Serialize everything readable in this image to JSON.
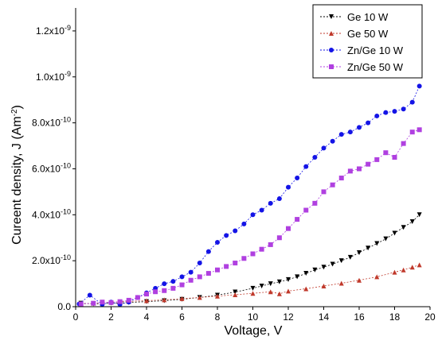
{
  "chart_data": {
    "type": "scatter",
    "xlabel": "Voltage, V",
    "ylabel": "Cureent density, J (Am",
    "ylabel_sup": "-2",
    "ylabel_tail": ")",
    "xlim": [
      0,
      20
    ],
    "ylim": [
      0,
      1.3e-09
    ],
    "grid": false,
    "legend_position": "top-right",
    "x_ticks": [
      {
        "value": 0,
        "label": "0"
      },
      {
        "value": 2,
        "label": "2"
      },
      {
        "value": 4,
        "label": "4"
      },
      {
        "value": 6,
        "label": "6"
      },
      {
        "value": 8,
        "label": "8"
      },
      {
        "value": 10,
        "label": "10"
      },
      {
        "value": 12,
        "label": "12"
      },
      {
        "value": 14,
        "label": "14"
      },
      {
        "value": 16,
        "label": "16"
      },
      {
        "value": 18,
        "label": "18"
      },
      {
        "value": 20,
        "label": "20"
      }
    ],
    "y_ticks": [
      {
        "value": 0,
        "label": "0.0",
        "sup": ""
      },
      {
        "value": 2e-10,
        "label": "2.0x10",
        "sup": "-10"
      },
      {
        "value": 4e-10,
        "label": "4.0x10",
        "sup": "-10"
      },
      {
        "value": 6e-10,
        "label": "6.0x10",
        "sup": "-10"
      },
      {
        "value": 8e-10,
        "label": "8.0x10",
        "sup": "-10"
      },
      {
        "value": 1e-09,
        "label": "1.0x10",
        "sup": "-9"
      },
      {
        "value": 1.2e-09,
        "label": "1.2x10",
        "sup": "-9"
      }
    ],
    "series": [
      {
        "name": "Ge 10 W",
        "color": "#000000",
        "marker": "triangle-down",
        "x": [
          0.3,
          1,
          2,
          3,
          4,
          5,
          6,
          7,
          8,
          9,
          10,
          10.5,
          11,
          11.5,
          12,
          12.5,
          13,
          13.5,
          14,
          14.5,
          15,
          15.5,
          16,
          16.5,
          17,
          17.5,
          18,
          18.5,
          19,
          19.4
        ],
        "y": [
          1.5e-11,
          1.2e-11,
          1.5e-11,
          1.8e-11,
          2.2e-11,
          2.6e-11,
          3.2e-11,
          4e-11,
          5e-11,
          6.4e-11,
          8e-11,
          9e-11,
          1e-10,
          1.08e-10,
          1.18e-10,
          1.3e-10,
          1.45e-10,
          1.6e-10,
          1.72e-10,
          1.85e-10,
          2e-10,
          2.15e-10,
          2.35e-10,
          2.55e-10,
          2.75e-10,
          2.95e-10,
          3.2e-10,
          3.45e-10,
          3.7e-10,
          4e-10
        ]
      },
      {
        "name": "Ge 50 W",
        "color": "#c0392b",
        "marker": "triangle-up",
        "x": [
          0.3,
          1,
          2,
          3,
          4,
          5,
          6,
          7,
          8,
          9,
          10,
          11,
          11.5,
          12,
          13,
          14,
          15,
          16,
          17,
          18,
          18.5,
          19,
          19.4
        ],
        "y": [
          1.2e-11,
          1.5e-11,
          2e-11,
          2.3e-11,
          2.6e-11,
          3e-11,
          3.5e-11,
          4e-11,
          4.6e-11,
          5.2e-11,
          5.8e-11,
          6.5e-11,
          5.6e-11,
          6.8e-11,
          7.8e-11,
          9e-11,
          1.02e-10,
          1.15e-10,
          1.3e-10,
          1.5e-10,
          1.6e-10,
          1.72e-10,
          1.82e-10
        ]
      },
      {
        "name": "Zn/Ge 10 W",
        "color": "#1414e6",
        "marker": "circle",
        "x": [
          0.2,
          0.8,
          1.5,
          2,
          2.5,
          3,
          3.5,
          4,
          4.5,
          5,
          5.5,
          6,
          6.5,
          7,
          7.5,
          8,
          8.5,
          9,
          9.5,
          10,
          10.5,
          11,
          11.5,
          12,
          12.5,
          13,
          13.5,
          14,
          14.5,
          15,
          15.5,
          16,
          16.5,
          17,
          17.5,
          18,
          18.5,
          19,
          19.4
        ],
        "y": [
          1.2e-11,
          5e-11,
          1e-11,
          2e-11,
          1e-11,
          2e-11,
          4e-11,
          6e-11,
          8e-11,
          1e-10,
          1.1e-10,
          1.3e-10,
          1.5e-10,
          1.9e-10,
          2.4e-10,
          2.8e-10,
          3.1e-10,
          3.3e-10,
          3.6e-10,
          4e-10,
          4.2e-10,
          4.5e-10,
          4.7e-10,
          5.2e-10,
          5.6e-10,
          6.1e-10,
          6.5e-10,
          6.9e-10,
          7.2e-10,
          7.5e-10,
          7.6e-10,
          7.8e-10,
          8e-10,
          8.3e-10,
          8.45e-10,
          8.5e-10,
          8.6e-10,
          8.9e-10,
          9.6e-10
        ]
      },
      {
        "name": "Zn/Ge 50 W",
        "color": "#b040e0",
        "marker": "square",
        "x": [
          0.3,
          1,
          1.5,
          2,
          2.5,
          3,
          3.5,
          4,
          4.5,
          5,
          5.5,
          6,
          6.5,
          7,
          7.5,
          8,
          8.5,
          9,
          9.5,
          10,
          10.5,
          11,
          11.5,
          12,
          12.5,
          13,
          13.5,
          14,
          14.5,
          15,
          15.5,
          16,
          16.5,
          17,
          17.5,
          18,
          18.5,
          19,
          19.4
        ],
        "y": [
          1.2e-11,
          1.5e-11,
          2e-11,
          1.8e-11,
          2.2e-11,
          2.8e-11,
          4e-11,
          5.5e-11,
          6.5e-11,
          7e-11,
          8e-11,
          9.5e-11,
          1.15e-10,
          1.3e-10,
          1.45e-10,
          1.6e-10,
          1.75e-10,
          1.9e-10,
          2.1e-10,
          2.3e-10,
          2.5e-10,
          2.7e-10,
          3e-10,
          3.4e-10,
          3.8e-10,
          4.2e-10,
          4.5e-10,
          5e-10,
          5.3e-10,
          5.6e-10,
          5.9e-10,
          6e-10,
          6.2e-10,
          6.4e-10,
          6.7e-10,
          6.5e-10,
          7.1e-10,
          7.6e-10,
          7.7e-10
        ]
      }
    ]
  }
}
